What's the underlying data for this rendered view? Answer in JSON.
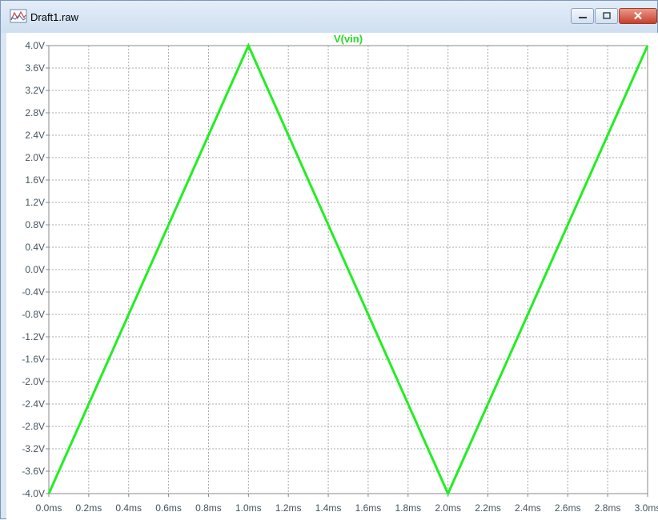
{
  "window": {
    "title": "Draft1.raw",
    "close_label": "✕",
    "min_label": "—",
    "max_label": "☐"
  },
  "chart_data": {
    "type": "line",
    "title": "V(vin)",
    "xlim": [
      0,
      3.0
    ],
    "ylim": [
      -4.0,
      4.0
    ],
    "x_ticks": [
      "0.0ms",
      "0.2ms",
      "0.4ms",
      "0.6ms",
      "0.8ms",
      "1.0ms",
      "1.2ms",
      "1.4ms",
      "1.6ms",
      "1.8ms",
      "2.0ms",
      "2.2ms",
      "2.4ms",
      "2.6ms",
      "2.8ms",
      "3.0ms"
    ],
    "y_ticks": [
      "4.0V",
      "3.6V",
      "3.2V",
      "2.8V",
      "2.4V",
      "2.0V",
      "1.6V",
      "1.2V",
      "0.8V",
      "0.4V",
      "0.0V",
      "-0.4V",
      "-0.8V",
      "-1.2V",
      "-1.6V",
      "-2.0V",
      "-2.4V",
      "-2.8V",
      "-3.2V",
      "-3.6V",
      "-4.0V"
    ],
    "grid": true,
    "series": [
      {
        "name": "V(vin)",
        "color": "#22ee22",
        "x": [
          0.0,
          1.0,
          2.0,
          3.0
        ],
        "y": [
          -4.0,
          4.0,
          -4.0,
          4.0
        ]
      }
    ]
  }
}
